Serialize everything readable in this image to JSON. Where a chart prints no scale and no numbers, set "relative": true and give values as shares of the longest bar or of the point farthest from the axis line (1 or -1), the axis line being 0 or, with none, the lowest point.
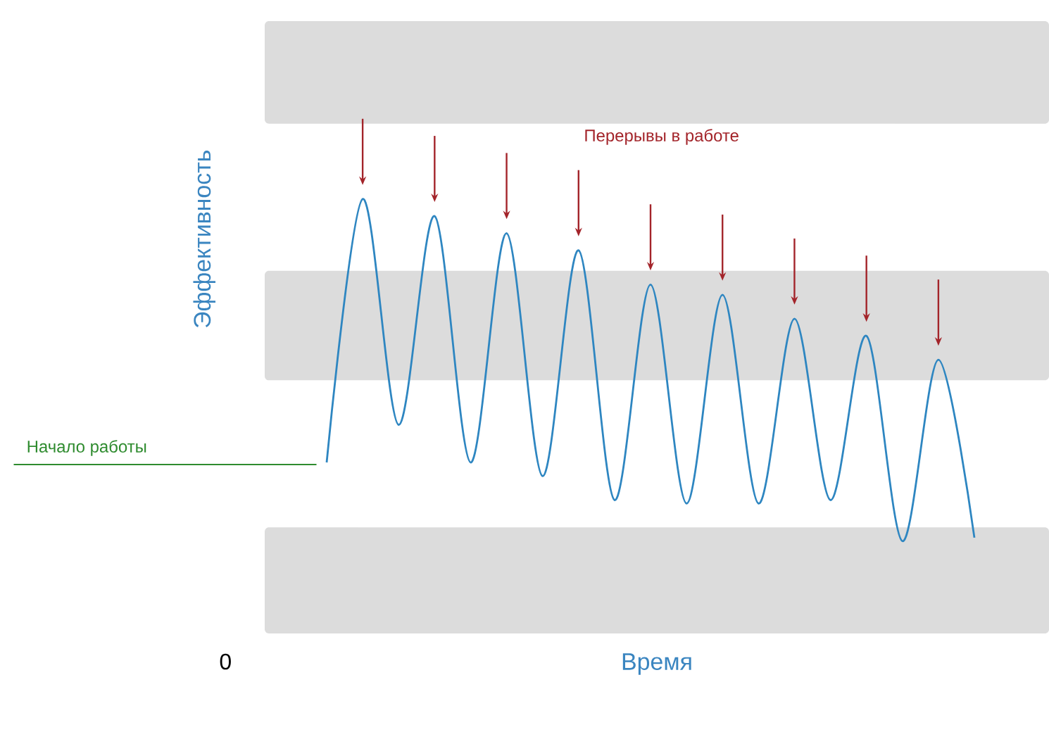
{
  "chart_data": {
    "type": "line",
    "relative": true,
    "xlabel": "Время",
    "ylabel": "Эффективность",
    "categories": [
      null,
      null,
      null,
      null,
      null,
      null,
      null,
      null,
      null,
      null,
      null,
      null,
      null,
      null,
      null,
      null,
      null,
      null,
      null
    ],
    "series": [
      {
        "color": "#2e86c1",
        "values": [
          0.23,
          1.0,
          0.34,
          0.95,
          0.23,
          0.9,
          0.19,
          0.85,
          0.12,
          0.75,
          0.11,
          0.72,
          0.11,
          0.65,
          0.12,
          0.6,
          0.0,
          0.53,
          0.01
        ]
      }
    ],
    "bands": [
      {
        "axis": "y",
        "from": 1.22,
        "to": 1.52,
        "color": "#dcdcdc"
      },
      {
        "axis": "y",
        "from": 0.47,
        "to": 0.79,
        "color": "#dcdcdc"
      },
      {
        "axis": "y",
        "from": -0.27,
        "to": 0.04,
        "color": "#dcdcdc"
      }
    ],
    "annotations": [
      "Перерывы в работе",
      "Начало работы",
      "0"
    ]
  }
}
